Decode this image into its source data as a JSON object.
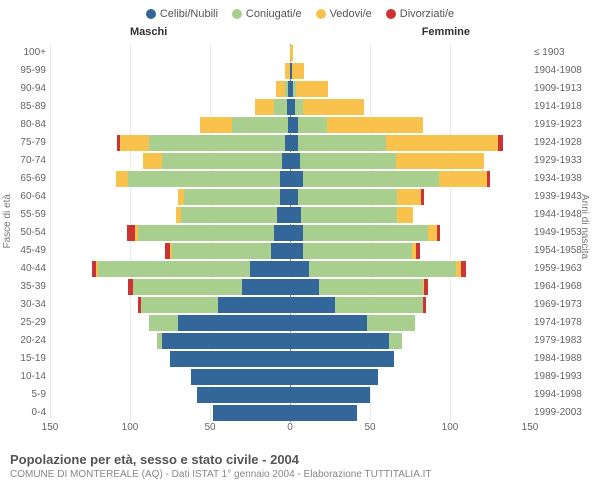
{
  "legend": [
    {
      "label": "Celibi/Nubili",
      "color": "#336699"
    },
    {
      "label": "Coniugati/e",
      "color": "#a9cf8f"
    },
    {
      "label": "Vedovi/e",
      "color": "#f9c24c"
    },
    {
      "label": "Divorziati/e",
      "color": "#cc3333"
    }
  ],
  "header_male": "Maschi",
  "header_female": "Femmine",
  "axis_left_label": "Fasce di età",
  "axis_right_label": "Anni di nascita",
  "x_max": 150,
  "x_ticks": [
    150,
    100,
    50,
    0,
    50,
    100,
    150
  ],
  "caption_title": "Popolazione per età, sesso e stato civile - 2004",
  "caption_sub": "COMUNE DI MONTEREALE (AQ) - Dati ISTAT 1° gennaio 2004 - Elaborazione TUTTITALIA.IT",
  "rows": [
    {
      "age": "100+",
      "birth": "≤ 1903",
      "m": [
        0,
        0,
        0,
        0
      ],
      "f": [
        0,
        0,
        2,
        0
      ]
    },
    {
      "age": "95-99",
      "birth": "1904-1908",
      "m": [
        0,
        0,
        3,
        0
      ],
      "f": [
        1,
        0,
        8,
        0
      ]
    },
    {
      "age": "90-94",
      "birth": "1909-1913",
      "m": [
        1,
        2,
        6,
        0
      ],
      "f": [
        2,
        2,
        20,
        0
      ]
    },
    {
      "age": "85-89",
      "birth": "1914-1918",
      "m": [
        2,
        8,
        12,
        0
      ],
      "f": [
        3,
        5,
        38,
        0
      ]
    },
    {
      "age": "80-84",
      "birth": "1919-1923",
      "m": [
        1,
        35,
        20,
        0
      ],
      "f": [
        5,
        18,
        60,
        0
      ]
    },
    {
      "age": "75-79",
      "birth": "1924-1928",
      "m": [
        3,
        85,
        18,
        2
      ],
      "f": [
        5,
        55,
        70,
        3
      ]
    },
    {
      "age": "70-74",
      "birth": "1929-1933",
      "m": [
        5,
        75,
        12,
        0
      ],
      "f": [
        6,
        60,
        55,
        0
      ]
    },
    {
      "age": "65-69",
      "birth": "1934-1938",
      "m": [
        6,
        95,
        8,
        0
      ],
      "f": [
        8,
        85,
        30,
        2
      ]
    },
    {
      "age": "60-64",
      "birth": "1939-1943",
      "m": [
        6,
        60,
        4,
        0
      ],
      "f": [
        5,
        62,
        15,
        2
      ]
    },
    {
      "age": "55-59",
      "birth": "1944-1948",
      "m": [
        8,
        60,
        3,
        0
      ],
      "f": [
        7,
        60,
        10,
        0
      ]
    },
    {
      "age": "50-54",
      "birth": "1949-1953",
      "m": [
        10,
        85,
        2,
        5
      ],
      "f": [
        8,
        78,
        6,
        2
      ]
    },
    {
      "age": "45-49",
      "birth": "1954-1958",
      "m": [
        12,
        62,
        1,
        3
      ],
      "f": [
        8,
        68,
        3,
        2
      ]
    },
    {
      "age": "40-44",
      "birth": "1959-1963",
      "m": [
        25,
        95,
        1,
        3
      ],
      "f": [
        12,
        92,
        3,
        3
      ]
    },
    {
      "age": "35-39",
      "birth": "1964-1968",
      "m": [
        30,
        68,
        0,
        3
      ],
      "f": [
        18,
        65,
        1,
        2
      ]
    },
    {
      "age": "30-34",
      "birth": "1969-1973",
      "m": [
        45,
        48,
        0,
        2
      ],
      "f": [
        28,
        55,
        0,
        2
      ]
    },
    {
      "age": "25-29",
      "birth": "1974-1978",
      "m": [
        70,
        18,
        0,
        0
      ],
      "f": [
        48,
        30,
        0,
        0
      ]
    },
    {
      "age": "20-24",
      "birth": "1979-1983",
      "m": [
        80,
        3,
        0,
        0
      ],
      "f": [
        62,
        8,
        0,
        0
      ]
    },
    {
      "age": "15-19",
      "birth": "1984-1988",
      "m": [
        75,
        0,
        0,
        0
      ],
      "f": [
        65,
        0,
        0,
        0
      ]
    },
    {
      "age": "10-14",
      "birth": "1989-1993",
      "m": [
        62,
        0,
        0,
        0
      ],
      "f": [
        55,
        0,
        0,
        0
      ]
    },
    {
      "age": "5-9",
      "birth": "1994-1998",
      "m": [
        58,
        0,
        0,
        0
      ],
      "f": [
        50,
        0,
        0,
        0
      ]
    },
    {
      "age": "0-4",
      "birth": "1999-2003",
      "m": [
        48,
        0,
        0,
        0
      ],
      "f": [
        42,
        0,
        0,
        0
      ]
    }
  ]
}
